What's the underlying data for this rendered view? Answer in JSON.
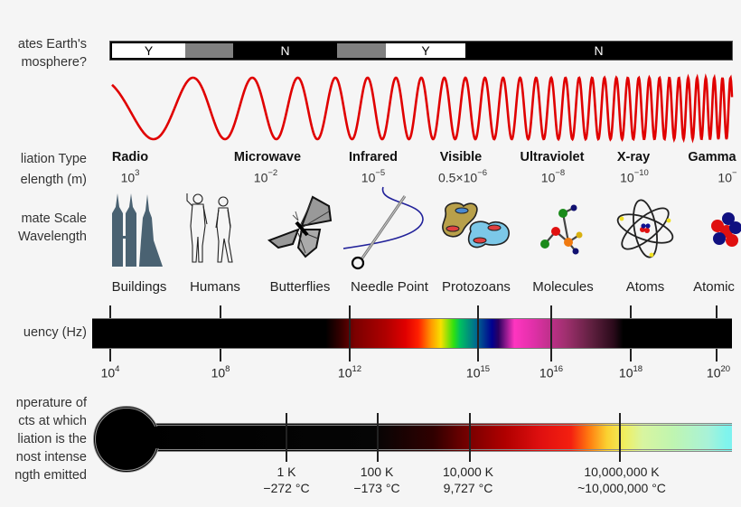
{
  "row_labels": {
    "atmosphere": [
      "ates Earth's",
      "mosphere?"
    ],
    "radiation_type": "liation Type",
    "wavelength": "elength (m)",
    "scale": [
      "mate Scale",
      "Wavelength"
    ],
    "frequency": "uency (Hz)",
    "temperature": [
      "nperature of",
      "cts at which",
      "liation is the",
      "nost intense",
      "ngth emitted"
    ]
  },
  "atmosphere_bar": {
    "segments": [
      {
        "label": "Y",
        "value": "penetrates",
        "color": "#ffffff"
      },
      {
        "label": "",
        "value": "partial",
        "color": "#808080"
      },
      {
        "label": "N",
        "value": "blocked",
        "color": "#000000"
      },
      {
        "label": "",
        "value": "partial",
        "color": "#808080"
      },
      {
        "label": "Y",
        "value": "penetrates",
        "color": "#ffffff"
      },
      {
        "label": "N",
        "value": "blocked",
        "color": "#000000"
      }
    ]
  },
  "wave": {
    "color": "#e00000"
  },
  "bands": [
    {
      "name": "Radio",
      "wavelength_base": "10",
      "wavelength_exp": "3",
      "scale": "Buildings",
      "icon": "buildings-icon"
    },
    {
      "name": "",
      "wavelength_base": "",
      "wavelength_exp": "",
      "scale": "Humans",
      "icon": "humans-icon"
    },
    {
      "name": "Microwave",
      "wavelength_base": "10",
      "wavelength_exp": "−2",
      "scale": "Butterflies",
      "icon": "butterfly-icon"
    },
    {
      "name": "Infrared",
      "wavelength_base": "10",
      "wavelength_exp": "−5",
      "scale": "Needle Point",
      "icon": "needle-icon"
    },
    {
      "name": "Visible",
      "wavelength_base": "0.5×10",
      "wavelength_exp": "−6",
      "scale": "Protozoans",
      "icon": "protozoa-icon"
    },
    {
      "name": "Ultraviolet",
      "wavelength_base": "10",
      "wavelength_exp": "−8",
      "scale": "Molecules",
      "icon": "molecule-icon"
    },
    {
      "name": "X-ray",
      "wavelength_base": "10",
      "wavelength_exp": "−10",
      "scale": "Atoms",
      "icon": "atom-icon"
    },
    {
      "name": "Gamma",
      "wavelength_base": "10",
      "wavelength_exp": "−",
      "scale": "Atomic",
      "icon": "nucleus-icon"
    }
  ],
  "frequency_axis": {
    "ticks": [
      {
        "base": "10",
        "exp": "4"
      },
      {
        "base": "10",
        "exp": "8"
      },
      {
        "base": "10",
        "exp": "12"
      },
      {
        "base": "10",
        "exp": "15"
      },
      {
        "base": "10",
        "exp": "16"
      },
      {
        "base": "10",
        "exp": "18"
      },
      {
        "base": "10",
        "exp": "20"
      }
    ]
  },
  "temperature_axis": {
    "ticks": [
      {
        "kelvin": "1 K",
        "celsius": "−272 °C"
      },
      {
        "kelvin": "100 K",
        "celsius": "−173 °C"
      },
      {
        "kelvin": "10,000 K",
        "celsius": "9,727 °C"
      },
      {
        "kelvin": "10,000,000 K",
        "celsius": "~10,000,000 °C"
      }
    ]
  }
}
